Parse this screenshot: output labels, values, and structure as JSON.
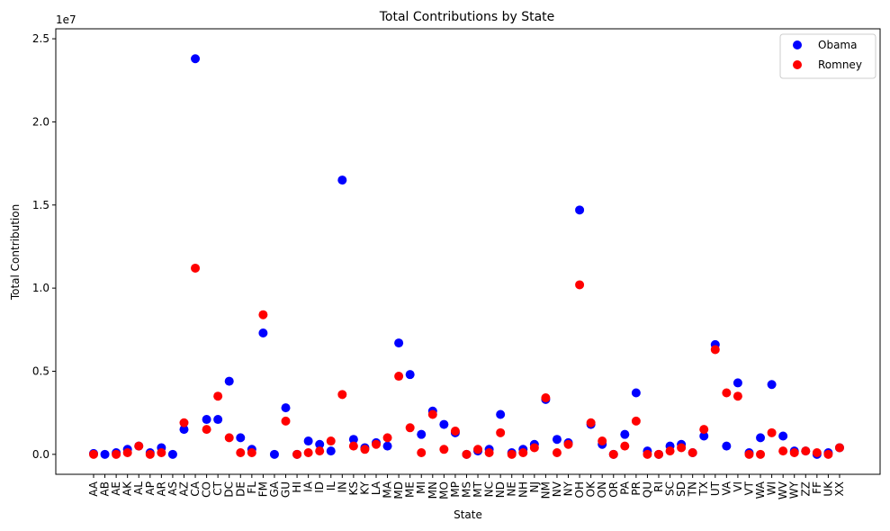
{
  "chart_data": {
    "type": "scatter",
    "title": "Total Contributions by State",
    "xlabel": "State",
    "ylabel": "Total Contribution",
    "offset_label": "1e7",
    "categories": [
      "AA",
      "AB",
      "AE",
      "AK",
      "AL",
      "AP",
      "AR",
      "AS",
      "AZ",
      "CA",
      "CO",
      "CT",
      "DC",
      "DE",
      "FL",
      "FM",
      "GA",
      "GU",
      "HI",
      "IA",
      "ID",
      "IL",
      "IN",
      "KS",
      "KY",
      "LA",
      "MA",
      "MD",
      "ME",
      "MI",
      "MN",
      "MO",
      "MP",
      "MS",
      "MT",
      "NC",
      "ND",
      "NE",
      "NH",
      "NJ",
      "NM",
      "NV",
      "NY",
      "OH",
      "OK",
      "ON",
      "OR",
      "PA",
      "PR",
      "QU",
      "RI",
      "SC",
      "SD",
      "TN",
      "TX",
      "UT",
      "VA",
      "VI",
      "VT",
      "WA",
      "WI",
      "WV",
      "WY",
      "ZZ",
      "FF",
      "UK",
      "XX"
    ],
    "y_ticks": [
      0,
      0.5,
      1.0,
      1.5,
      2.0,
      2.5
    ],
    "y_tick_labels": [
      "0.0",
      "0.5",
      "1.0",
      "1.5",
      "2.0",
      "2.5"
    ],
    "ylim": [
      -0.12,
      2.56
    ],
    "y_unit_scale": 10000000,
    "grid": false,
    "legend_position": "top-right",
    "series": [
      {
        "name": "Obama",
        "color": "#0000ff",
        "values": [
          0.005,
          0.0,
          0.01,
          0.03,
          0.05,
          0.01,
          0.04,
          0.0,
          0.15,
          2.38,
          0.21,
          0.21,
          0.44,
          0.1,
          0.03,
          0.73,
          0.0,
          0.28,
          0.0,
          0.08,
          0.06,
          0.02,
          1.65,
          0.09,
          0.04,
          0.07,
          0.05,
          0.67,
          0.48,
          0.12,
          0.26,
          0.18,
          0.13,
          0.0,
          0.02,
          0.03,
          0.24,
          0.01,
          0.03,
          0.06,
          0.33,
          0.09,
          0.07,
          1.47,
          0.18,
          0.06,
          0.0,
          0.12,
          0.37,
          0.02,
          0.0,
          0.05,
          0.06,
          0.01,
          0.11,
          0.66,
          0.05,
          0.43,
          0.01,
          0.1,
          0.42,
          0.11,
          0.02,
          0.02,
          0.0,
          0.01,
          0.04
        ]
      },
      {
        "name": "Romney",
        "color": "#ff0000",
        "values": [
          0.0,
          null,
          0.0,
          0.01,
          0.05,
          0.0,
          0.01,
          null,
          0.19,
          1.12,
          0.15,
          0.35,
          0.1,
          0.01,
          0.01,
          0.84,
          null,
          0.2,
          0.0,
          0.01,
          0.02,
          0.08,
          0.36,
          0.05,
          0.03,
          0.06,
          0.1,
          0.47,
          0.16,
          0.01,
          0.24,
          0.03,
          0.14,
          0.0,
          0.03,
          0.01,
          0.13,
          0.0,
          0.01,
          0.04,
          0.34,
          0.01,
          0.06,
          1.02,
          0.19,
          0.08,
          0.0,
          0.05,
          0.2,
          0.0,
          0.0,
          0.02,
          0.04,
          0.01,
          0.15,
          0.63,
          0.37,
          0.35,
          0.0,
          0.0,
          0.13,
          0.02,
          0.01,
          0.02,
          0.01,
          0.0,
          0.04
        ]
      }
    ]
  }
}
